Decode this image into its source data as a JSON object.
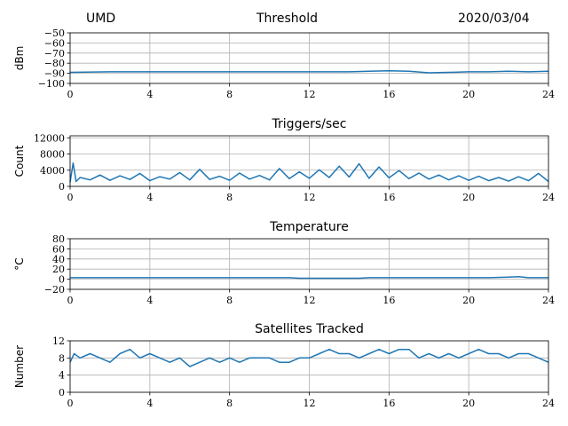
{
  "header": {
    "left": "UMD",
    "center": "Threshold",
    "right": "2020/03/04"
  },
  "chart_data": [
    {
      "id": "threshold",
      "type": "line",
      "title": "",
      "xlabel": "",
      "ylabel": "dBm",
      "xlim": [
        0,
        24
      ],
      "ylim": [
        -100,
        -50
      ],
      "xticks": [
        0,
        4,
        8,
        12,
        16,
        20,
        24
      ],
      "yticks": [
        -100,
        -90,
        -80,
        -70,
        -60,
        -50
      ],
      "ytick_labels": [
        "−100",
        "−90",
        "−80",
        "−70",
        "−60",
        "−50"
      ],
      "grid": true,
      "color": "#1f77b4",
      "series": [
        {
          "x": [
            0,
            2,
            4,
            6,
            8,
            10,
            12,
            14,
            15,
            16,
            17,
            18,
            19,
            20,
            21,
            22,
            23,
            24
          ],
          "values": [
            -89,
            -88.5,
            -88.5,
            -88.5,
            -88.5,
            -88.5,
            -88.5,
            -88.5,
            -88,
            -87.5,
            -88,
            -89.5,
            -89,
            -88.5,
            -88.5,
            -88,
            -88.5,
            -88
          ]
        }
      ]
    },
    {
      "id": "triggers",
      "type": "line",
      "title": "Triggers/sec",
      "xlabel": "",
      "ylabel": "Count",
      "xlim": [
        0,
        24
      ],
      "ylim": [
        0,
        12500
      ],
      "xticks": [
        0,
        4,
        8,
        12,
        16,
        20,
        24
      ],
      "yticks": [
        0,
        4000,
        8000,
        12000
      ],
      "ytick_labels": [
        "0",
        "4000",
        "8000",
        "12000"
      ],
      "grid": true,
      "color": "#1f77b4",
      "series": [
        {
          "x": [
            0,
            0.15,
            0.3,
            0.5,
            1,
            1.5,
            2,
            2.5,
            3,
            3.5,
            4,
            4.5,
            5,
            5.5,
            6,
            6.5,
            7,
            7.5,
            8,
            8.5,
            9,
            9.5,
            10,
            10.5,
            11,
            11.5,
            12,
            12.5,
            13,
            13.5,
            14,
            14.5,
            15,
            15.5,
            16,
            16.5,
            17,
            17.5,
            18,
            18.5,
            19,
            19.5,
            20,
            20.5,
            21,
            21.5,
            22,
            22.5,
            23,
            23.5,
            24
          ],
          "values": [
            1000,
            5800,
            1200,
            2200,
            1600,
            2800,
            1500,
            2600,
            1700,
            3200,
            1400,
            2400,
            1800,
            3400,
            1600,
            4200,
            1700,
            2500,
            1500,
            3300,
            1800,
            2700,
            1600,
            4400,
            1900,
            3600,
            2000,
            4100,
            2200,
            5000,
            2300,
            5600,
            2000,
            4800,
            2100,
            3900,
            1900,
            3300,
            1800,
            2800,
            1600,
            2600,
            1500,
            2500,
            1400,
            2200,
            1300,
            2400,
            1400,
            3200,
            1200
          ]
        }
      ]
    },
    {
      "id": "temperature",
      "type": "line",
      "title": "Temperature",
      "xlabel": "",
      "ylabel": "°C",
      "xlim": [
        0,
        24
      ],
      "ylim": [
        -20,
        80
      ],
      "xticks": [
        0,
        4,
        8,
        12,
        16,
        20,
        24
      ],
      "yticks": [
        -20,
        0,
        20,
        40,
        60,
        80
      ],
      "ytick_labels": [
        "−20",
        "0",
        "20",
        "40",
        "60",
        "80"
      ],
      "grid": true,
      "color": "#1f77b4",
      "series": [
        {
          "x": [
            0,
            4,
            8,
            11,
            11.5,
            14.5,
            15,
            20,
            21,
            22,
            22.5,
            23,
            24
          ],
          "values": [
            3,
            3,
            3,
            3,
            2,
            2,
            3,
            3,
            3,
            4,
            5,
            3,
            3
          ]
        }
      ]
    },
    {
      "id": "satellites",
      "type": "line",
      "title": "Satellites Tracked",
      "xlabel": "",
      "ylabel": "Number",
      "xlim": [
        0,
        24
      ],
      "ylim": [
        0,
        12
      ],
      "xticks": [
        0,
        4,
        8,
        12,
        16,
        20,
        24
      ],
      "yticks": [
        0,
        4,
        8,
        12
      ],
      "ytick_labels": [
        "0",
        "4",
        "8",
        "12"
      ],
      "grid": true,
      "color": "#1f77b4",
      "series": [
        {
          "x": [
            0,
            0.2,
            0.5,
            1,
            1.5,
            2,
            2.5,
            3,
            3.5,
            4,
            4.5,
            5,
            5.5,
            6,
            6.5,
            7,
            7.5,
            8,
            8.5,
            9,
            9.5,
            10,
            10.5,
            11,
            11.5,
            12,
            12.5,
            13,
            13.5,
            14,
            14.5,
            15,
            15.5,
            16,
            16.5,
            17,
            17.5,
            18,
            18.5,
            19,
            19.5,
            20,
            20.5,
            21,
            21.5,
            22,
            22.5,
            23,
            23.5,
            24
          ],
          "values": [
            7,
            9,
            8,
            9,
            8,
            7,
            9,
            10,
            8,
            9,
            8,
            7,
            8,
            6,
            7,
            8,
            7,
            8,
            7,
            8,
            8,
            8,
            7,
            7,
            8,
            8,
            9,
            10,
            9,
            9,
            8,
            9,
            10,
            9,
            10,
            10,
            8,
            9,
            8,
            9,
            8,
            9,
            10,
            9,
            9,
            8,
            9,
            9,
            8,
            7
          ]
        }
      ]
    }
  ]
}
